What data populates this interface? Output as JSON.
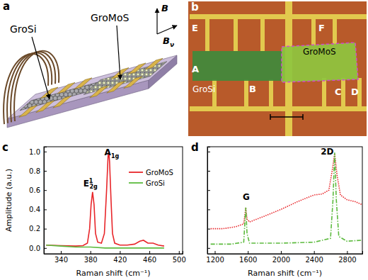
{
  "schematic": {
    "label": "a",
    "material_left": "GroSi",
    "material_right": "GroMoS",
    "field": "B",
    "field_in_plane": {
      "text": "B",
      "sub": "ν"
    }
  },
  "micrograph": {
    "label": "b",
    "contacts": [
      "A",
      "B",
      "C",
      "D",
      "E",
      "F"
    ],
    "material_left": "GroSi",
    "material_right": "GroMoS"
  },
  "chart_data": [
    {
      "title": "c",
      "type": "line",
      "x_label": "Raman shift (cm⁻¹)",
      "y_label": "Amplitude (a.u.)",
      "xlim": [
        317,
        505
      ],
      "ylim": [
        -0.06,
        1.05
      ],
      "xticks": [
        340,
        380,
        420,
        460,
        500
      ],
      "yticks": [
        {
          "value": 0,
          "label": "0.0"
        },
        0.2,
        0.4,
        0.6,
        0.8,
        {
          "value": 1,
          "label": "1.0"
        }
      ],
      "legend": "upper right",
      "series": [
        {
          "name": "GroMoS",
          "color": "#e8262a",
          "line_style": "solid",
          "x": [
            320,
            340,
            360,
            370,
            376,
            379,
            381,
            383,
            385,
            387,
            390,
            395,
            399,
            402,
            404,
            405,
            406,
            408,
            410,
            413,
            420,
            430,
            440,
            447,
            452,
            458,
            465,
            472,
            480
          ],
          "values": [
            0.03,
            0.025,
            0.02,
            0.025,
            0.05,
            0.2,
            0.45,
            0.58,
            0.45,
            0.15,
            0.06,
            0.05,
            0.15,
            0.6,
            0.95,
            1.0,
            0.9,
            0.5,
            0.15,
            0.05,
            0.03,
            0.03,
            0.04,
            0.07,
            0.08,
            0.05,
            0.05,
            0.03,
            0.02
          ]
        },
        {
          "name": "GroSi",
          "color": "#5dbb3f",
          "line_style": "solid",
          "x": [
            320,
            340,
            360,
            380,
            400,
            420,
            440,
            460,
            480
          ],
          "values": [
            0.03,
            0.02,
            0.01,
            0.01,
            0.0,
            0.0,
            0.0,
            0.0,
            0.0
          ]
        }
      ],
      "annotations": [
        {
          "text": "E",
          "sup": "1",
          "sub": "2g",
          "x": 380,
          "y": 0.64
        },
        {
          "text": "A",
          "sub": "1g",
          "x": 409,
          "y": 0.96
        }
      ]
    },
    {
      "title": "d",
      "type": "line",
      "x_label": "Raman shift (cm⁻¹)",
      "xlim": [
        1110,
        2985
      ],
      "ylim": [
        -0.06,
        1.05
      ],
      "xticks": [
        1200,
        1600,
        2000,
        2400,
        2800
      ],
      "yticks": [
        0,
        0.2,
        0.4,
        0.6,
        0.8,
        1
      ],
      "tick_labels": "x",
      "series": [
        {
          "color": "#e8262a",
          "line_style": "dotted",
          "x": [
            1150,
            1300,
            1450,
            1550,
            1575,
            1590,
            1620,
            1800,
            2000,
            2200,
            2400,
            2500,
            2580,
            2620,
            2650,
            2680,
            2720,
            2800,
            2900,
            2980
          ],
          "values": [
            0.2,
            0.2,
            0.22,
            0.25,
            0.42,
            0.3,
            0.27,
            0.33,
            0.4,
            0.48,
            0.55,
            0.56,
            0.6,
            0.8,
            0.98,
            0.75,
            0.55,
            0.5,
            0.48,
            0.45
          ]
        },
        {
          "color": "#5dbb3f",
          "line_style": "dashdot",
          "x": [
            1150,
            1400,
            1550,
            1575,
            1590,
            1620,
            2000,
            2400,
            2600,
            2630,
            2650,
            2670,
            2700,
            2800,
            2980
          ],
          "values": [
            0.04,
            0.04,
            0.06,
            0.42,
            0.15,
            0.05,
            0.05,
            0.06,
            0.1,
            0.5,
            0.99,
            0.5,
            0.12,
            0.07,
            0.08
          ]
        }
      ],
      "annotations": [
        {
          "text": "G",
          "x": 1580,
          "y": 0.5
        },
        {
          "text": "2D",
          "x": 2560,
          "y": 0.97
        }
      ]
    }
  ]
}
